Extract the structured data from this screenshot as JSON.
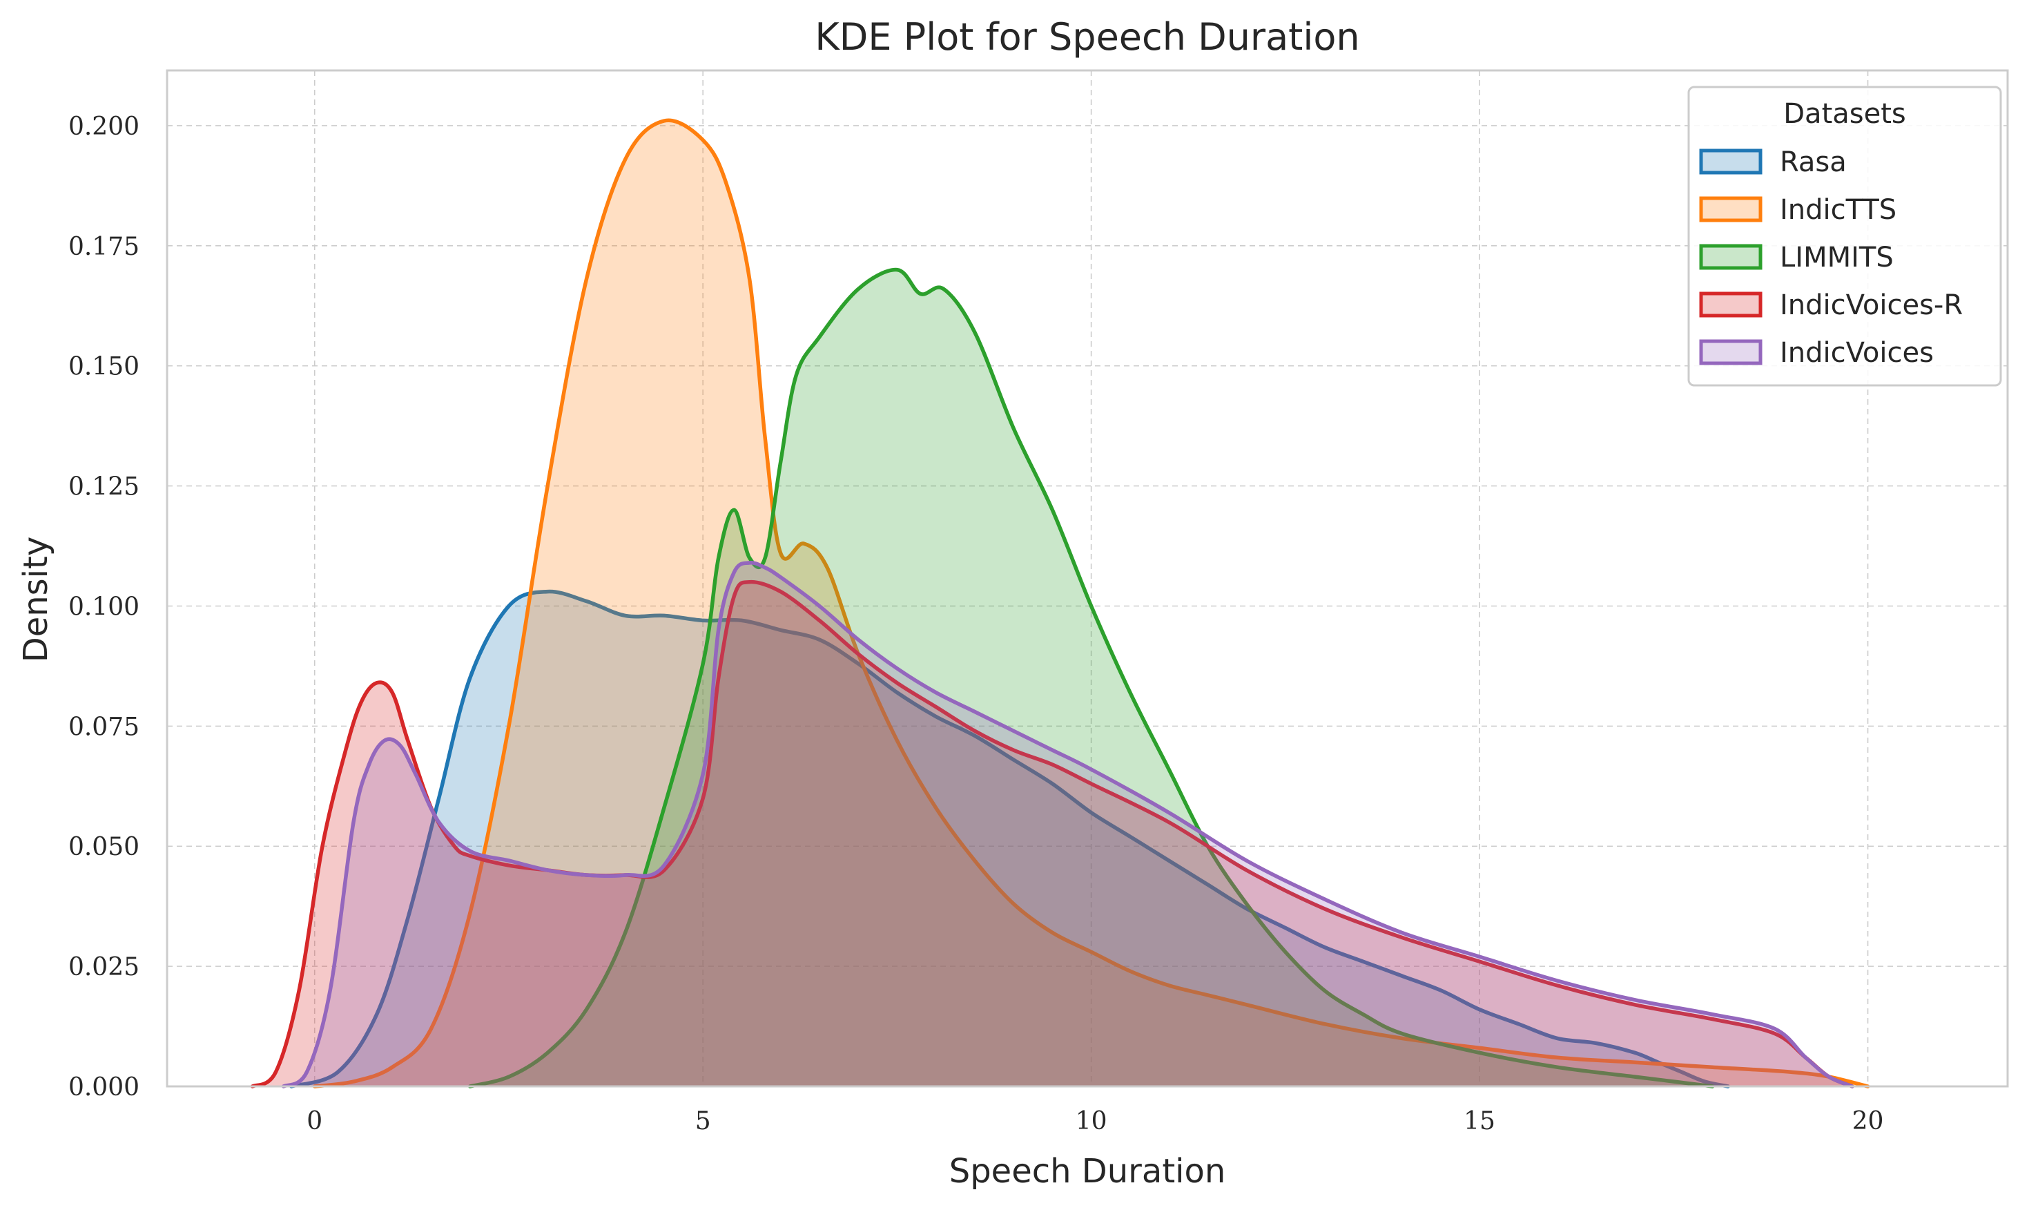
{
  "chart_data": {
    "type": "area",
    "title": "KDE Plot for Speech Duration",
    "xlabel": "Speech Duration",
    "ylabel": "Density",
    "xlim": [
      -1.9,
      21.8
    ],
    "ylim": [
      0,
      0.2115
    ],
    "xticks": [
      0,
      5,
      10,
      15,
      20
    ],
    "xtick_labels": [
      "0",
      "5",
      "10",
      "15",
      "20"
    ],
    "yticks": [
      0,
      0.025,
      0.05,
      0.075,
      0.1,
      0.125,
      0.15,
      0.175,
      0.2
    ],
    "ytick_labels": [
      "0.000",
      "0.025",
      "0.050",
      "0.075",
      "0.100",
      "0.125",
      "0.150",
      "0.175",
      "0.200"
    ],
    "grid": true,
    "legend": {
      "title": "Datasets",
      "position": "top-right"
    },
    "series": [
      {
        "name": "Rasa",
        "color": "#1f77b4",
        "x": [
          -0.3,
          0.3,
          0.8,
          1.2,
          1.6,
          2.0,
          2.5,
          3.0,
          3.5,
          4.0,
          4.5,
          5.0,
          5.5,
          6.0,
          6.5,
          7.0,
          7.5,
          8.0,
          8.5,
          9.0,
          9.5,
          10.0,
          10.5,
          11.0,
          11.5,
          12.0,
          12.5,
          13.0,
          13.5,
          14.0,
          14.5,
          15.0,
          15.5,
          16.0,
          16.5,
          17.0,
          17.3,
          17.6,
          17.9,
          18.2
        ],
        "y": [
          0.0,
          0.003,
          0.015,
          0.035,
          0.06,
          0.085,
          0.1,
          0.103,
          0.101,
          0.098,
          0.098,
          0.097,
          0.097,
          0.095,
          0.093,
          0.088,
          0.082,
          0.077,
          0.073,
          0.068,
          0.063,
          0.057,
          0.052,
          0.047,
          0.042,
          0.037,
          0.033,
          0.029,
          0.026,
          0.023,
          0.02,
          0.016,
          0.013,
          0.01,
          0.009,
          0.007,
          0.005,
          0.003,
          0.001,
          0.0
        ]
      },
      {
        "name": "IndicTTS",
        "color": "#ff7f0e",
        "x": [
          0.0,
          0.5,
          1.0,
          1.5,
          2.0,
          2.5,
          3.0,
          3.5,
          4.0,
          4.5,
          5.0,
          5.3,
          5.6,
          5.8,
          6.0,
          6.3,
          6.6,
          7.0,
          7.5,
          8.0,
          8.5,
          9.0,
          9.5,
          10.0,
          10.5,
          11.0,
          11.5,
          12.0,
          13.0,
          14.0,
          15.0,
          16.0,
          17.0,
          18.0,
          19.0,
          19.5,
          20.0
        ],
        "y": [
          0.0,
          0.001,
          0.004,
          0.012,
          0.036,
          0.075,
          0.125,
          0.168,
          0.193,
          0.201,
          0.197,
          0.188,
          0.168,
          0.135,
          0.111,
          0.113,
          0.108,
          0.09,
          0.072,
          0.058,
          0.047,
          0.038,
          0.032,
          0.028,
          0.024,
          0.021,
          0.019,
          0.017,
          0.013,
          0.01,
          0.008,
          0.006,
          0.005,
          0.004,
          0.003,
          0.002,
          0.0
        ]
      },
      {
        "name": "LIMMITS",
        "color": "#2ca02c",
        "x": [
          2.0,
          2.5,
          3.0,
          3.5,
          4.0,
          4.5,
          5.0,
          5.2,
          5.4,
          5.6,
          5.8,
          6.0,
          6.2,
          6.5,
          7.0,
          7.5,
          7.8,
          8.1,
          8.5,
          9.0,
          9.5,
          10.0,
          10.5,
          11.0,
          11.5,
          12.0,
          12.5,
          13.0,
          13.5,
          14.0,
          15.0,
          16.0,
          17.0,
          17.5,
          18.0
        ],
        "y": [
          0.0,
          0.002,
          0.007,
          0.016,
          0.032,
          0.058,
          0.088,
          0.11,
          0.12,
          0.11,
          0.11,
          0.13,
          0.148,
          0.156,
          0.166,
          0.17,
          0.165,
          0.166,
          0.157,
          0.137,
          0.12,
          0.1,
          0.082,
          0.066,
          0.05,
          0.038,
          0.028,
          0.02,
          0.015,
          0.011,
          0.007,
          0.004,
          0.002,
          0.001,
          0.0
        ]
      },
      {
        "name": "IndicVoices-R",
        "color": "#d62728",
        "x": [
          -0.8,
          -0.5,
          -0.2,
          0.1,
          0.4,
          0.6,
          0.8,
          1.0,
          1.2,
          1.5,
          1.8,
          2.0,
          2.5,
          3.0,
          3.5,
          4.0,
          4.5,
          5.0,
          5.2,
          5.4,
          5.6,
          6.0,
          6.5,
          7.0,
          7.5,
          8.0,
          8.5,
          9.0,
          9.5,
          10.0,
          11.0,
          12.0,
          13.0,
          14.0,
          15.0,
          16.0,
          17.0,
          18.0,
          18.8,
          19.2,
          19.5,
          19.8
        ],
        "y": [
          0.0,
          0.003,
          0.02,
          0.05,
          0.07,
          0.08,
          0.084,
          0.082,
          0.072,
          0.058,
          0.05,
          0.048,
          0.046,
          0.045,
          0.044,
          0.044,
          0.045,
          0.06,
          0.085,
          0.102,
          0.105,
          0.103,
          0.097,
          0.09,
          0.084,
          0.079,
          0.074,
          0.07,
          0.067,
          0.063,
          0.055,
          0.045,
          0.037,
          0.031,
          0.026,
          0.021,
          0.017,
          0.014,
          0.011,
          0.006,
          0.002,
          0.0
        ]
      },
      {
        "name": "IndicVoices",
        "color": "#9467bd",
        "x": [
          -0.4,
          -0.1,
          0.2,
          0.5,
          0.7,
          0.9,
          1.1,
          1.3,
          1.6,
          2.0,
          2.5,
          3.0,
          3.5,
          4.0,
          4.5,
          5.0,
          5.2,
          5.4,
          5.6,
          5.8,
          6.0,
          6.5,
          7.0,
          7.5,
          8.0,
          8.5,
          9.0,
          9.5,
          10.0,
          11.0,
          12.0,
          13.0,
          14.0,
          15.0,
          16.0,
          17.0,
          18.0,
          18.8,
          19.2,
          19.5,
          19.8
        ],
        "y": [
          0.0,
          0.003,
          0.02,
          0.055,
          0.067,
          0.072,
          0.071,
          0.065,
          0.055,
          0.049,
          0.047,
          0.045,
          0.044,
          0.044,
          0.046,
          0.065,
          0.095,
          0.107,
          0.109,
          0.108,
          0.106,
          0.1,
          0.093,
          0.087,
          0.082,
          0.078,
          0.074,
          0.07,
          0.066,
          0.057,
          0.047,
          0.039,
          0.032,
          0.027,
          0.022,
          0.018,
          0.015,
          0.012,
          0.006,
          0.002,
          0.0
        ]
      }
    ]
  }
}
